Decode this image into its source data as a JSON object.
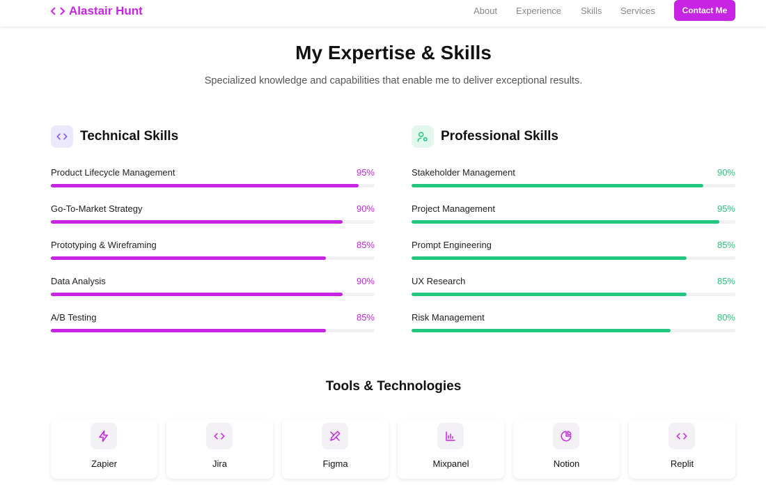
{
  "nav": {
    "brand": "Alastair Hunt",
    "links": [
      "About",
      "Experience",
      "Skills",
      "Services"
    ],
    "cta": "Contact Me"
  },
  "header": {
    "title": "My Expertise & Skills",
    "subtitle": "Specialized knowledge and capabilities that enable me to deliver exceptional results."
  },
  "sections": [
    {
      "title": "Technical Skills",
      "color": "#c724e3",
      "skills": [
        {
          "name": "Product Lifecycle Management",
          "value": 95,
          "label": "95%"
        },
        {
          "name": "Go-To-Market Strategy",
          "value": 90,
          "label": "90%"
        },
        {
          "name": "Prototyping & Wireframing",
          "value": 85,
          "label": "85%"
        },
        {
          "name": "Data Analysis",
          "value": 90,
          "label": "90%"
        },
        {
          "name": "A/B Testing",
          "value": 85,
          "label": "85%"
        }
      ]
    },
    {
      "title": "Professional Skills",
      "color": "#21c77c",
      "skills": [
        {
          "name": "Stakeholder Management",
          "value": 90,
          "label": "90%"
        },
        {
          "name": "Project Management",
          "value": 95,
          "label": "95%"
        },
        {
          "name": "Prompt Engineering",
          "value": 85,
          "label": "85%"
        },
        {
          "name": "UX Research",
          "value": 85,
          "label": "85%"
        },
        {
          "name": "Risk Management",
          "value": 80,
          "label": "80%"
        }
      ]
    }
  ],
  "tools": {
    "title": "Tools & Technologies",
    "items": [
      "Zapier",
      "Jira",
      "Figma",
      "Mixpanel",
      "Notion",
      "Replit"
    ]
  }
}
